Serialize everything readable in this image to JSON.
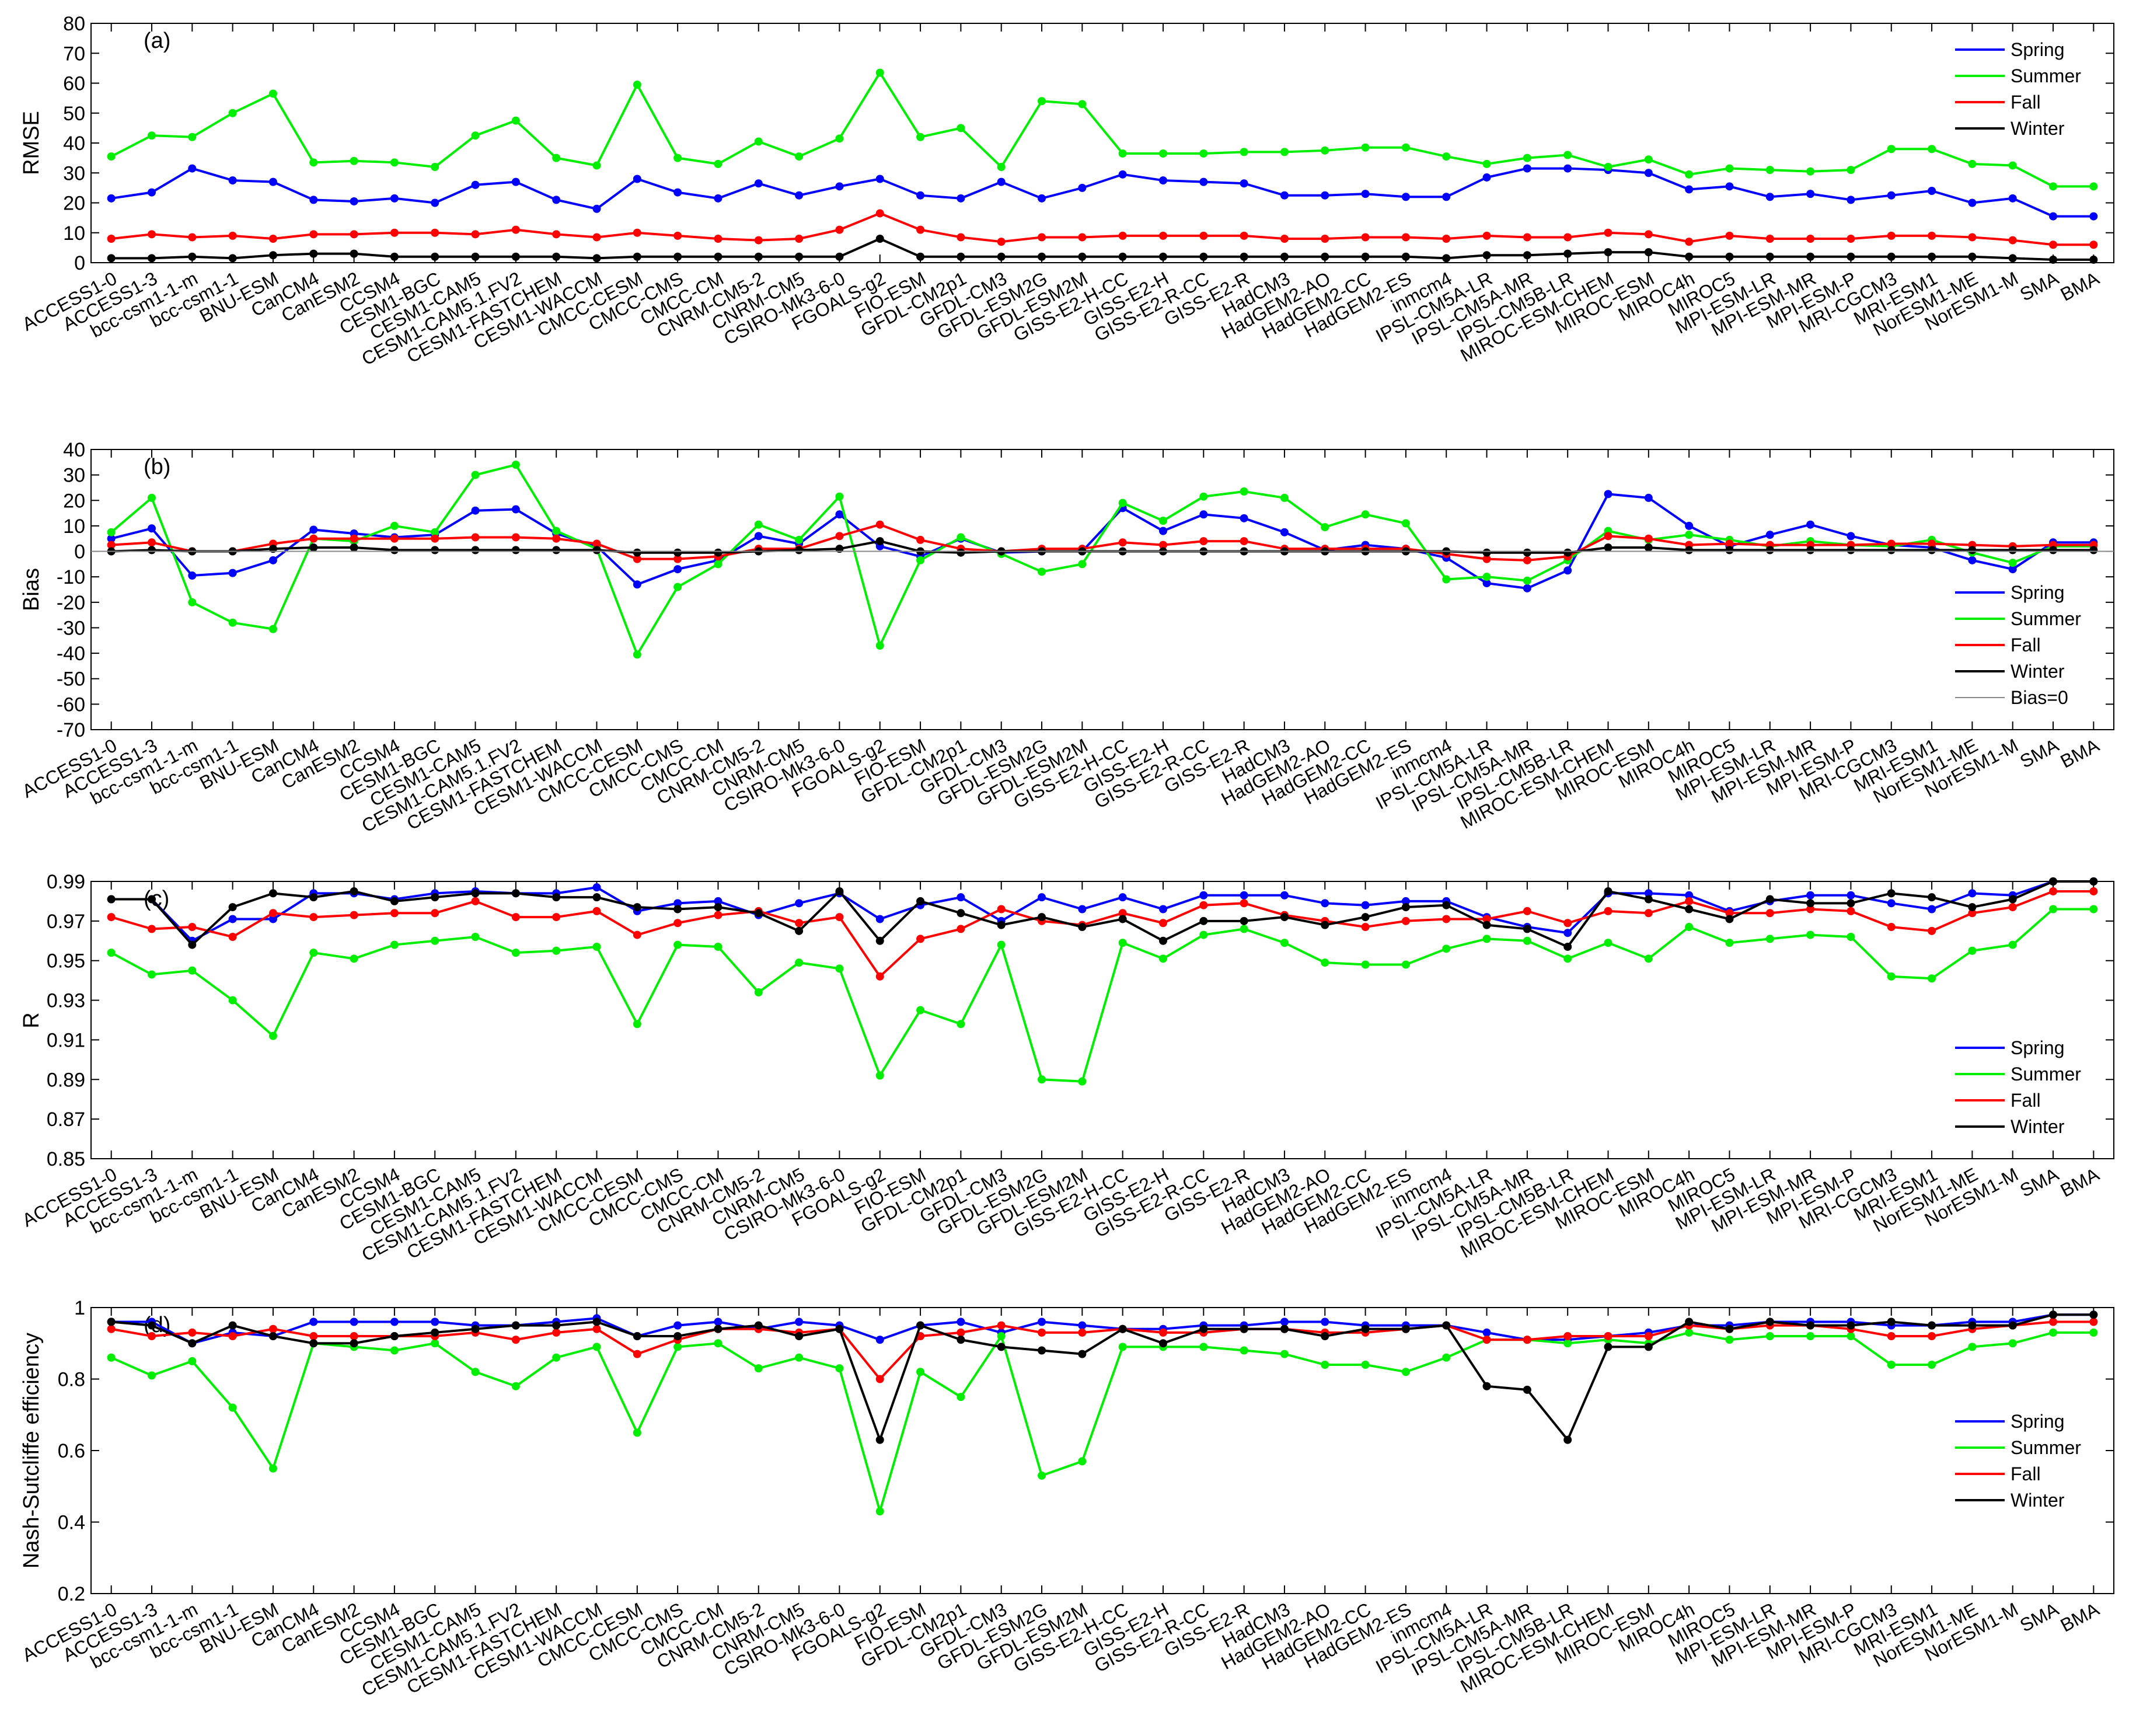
{
  "colors": {
    "spring": "#0000ff",
    "summer": "#00ee00",
    "fall": "#ff0000",
    "winter": "#000000",
    "zero": "#888888"
  },
  "models": [
    "ACCESS1-0",
    "ACCESS1-3",
    "bcc-csm1-1-m",
    "bcc-csm1-1",
    "BNU-ESM",
    "CanCM4",
    "CanESM2",
    "CCSM4",
    "CESM1-BGC",
    "CESM1-CAM5",
    "CESM1-CAM5.1.FV2",
    "CESM1-FASTCHEM",
    "CESM1-WACCM",
    "CMCC-CESM",
    "CMCC-CMS",
    "CMCC-CM",
    "CNRM-CM5-2",
    "CNRM-CM5",
    "CSIRO-Mk3-6-0",
    "FGOALS-g2",
    "FIO-ESM",
    "GFDL-CM2p1",
    "GFDL-CM3",
    "GFDL-ESM2G",
    "GFDL-ESM2M",
    "GISS-E2-H-CC",
    "GISS-E2-H",
    "GISS-E2-R-CC",
    "GISS-E2-R",
    "HadCM3",
    "HadGEM2-AO",
    "HadGEM2-CC",
    "HadGEM2-ES",
    "inmcm4",
    "IPSL-CM5A-LR",
    "IPSL-CM5A-MR",
    "IPSL-CM5B-LR",
    "MIROC-ESM-CHEM",
    "MIROC-ESM",
    "MIROC4h",
    "MIROC5",
    "MPI-ESM-LR",
    "MPI-ESM-MR",
    "MPI-ESM-P",
    "MRI-CGCM3",
    "MRI-ESM1",
    "NorESM1-ME",
    "NorESM1-M",
    "SMA",
    "BMA"
  ],
  "chart_data": [
    {
      "panel": "(a)",
      "type": "line",
      "ylabel": "RMSE",
      "ylim": [
        0,
        80
      ],
      "yticks": [
        "0",
        "10",
        "20",
        "30",
        "40",
        "50",
        "60",
        "70",
        "80"
      ],
      "legend": [
        "Spring",
        "Summer",
        "Fall",
        "Winter"
      ],
      "legend_position": "top-right",
      "series": [
        {
          "name": "Spring",
          "values": [
            21.5,
            23.5,
            31.5,
            27.5,
            27,
            21,
            20.5,
            21.5,
            20,
            26,
            27,
            21,
            18,
            28,
            23.5,
            21.5,
            26.5,
            22.5,
            25.5,
            28,
            22.5,
            21.5,
            27,
            21.5,
            25,
            29.5,
            27.5,
            27,
            26.5,
            22.5,
            22.5,
            23,
            22,
            22,
            28.5,
            31.5,
            31.5,
            31,
            30,
            24.5,
            25.5,
            22,
            23,
            21,
            22.5,
            24,
            20,
            21.5,
            15.5,
            15.5
          ]
        },
        {
          "name": "Summer",
          "values": [
            35.5,
            42.5,
            42,
            50,
            56.5,
            33.5,
            34,
            33.5,
            32,
            42.5,
            47.5,
            35,
            32.5,
            59.5,
            35,
            33,
            40.5,
            35.5,
            41.5,
            63.5,
            42,
            45,
            32,
            54,
            53,
            36.5,
            36.5,
            36.5,
            37,
            37,
            37.5,
            38.5,
            38.5,
            35.5,
            33,
            35,
            36,
            32,
            34.5,
            29.5,
            31.5,
            31,
            30.5,
            31,
            38,
            38,
            33,
            32.5,
            25.5,
            25.5
          ]
        },
        {
          "name": "Fall",
          "values": [
            8,
            9.5,
            8.5,
            9,
            8,
            9.5,
            9.5,
            10,
            10,
            9.5,
            11,
            9.5,
            8.5,
            10,
            9,
            8,
            7.5,
            8,
            11,
            16.5,
            11,
            8.5,
            7,
            8.5,
            8.5,
            9,
            9,
            9,
            9,
            8,
            8,
            8.5,
            8.5,
            8,
            9,
            8.5,
            8.5,
            10,
            9.5,
            7,
            9,
            8,
            8,
            8,
            9,
            9,
            8.5,
            7.5,
            6,
            6
          ]
        },
        {
          "name": "Winter",
          "values": [
            1.5,
            1.5,
            2,
            1.5,
            2.5,
            3,
            3,
            2,
            2,
            2,
            2,
            2,
            1.5,
            2,
            2,
            2,
            2,
            2,
            2,
            8,
            2,
            2,
            2,
            2,
            2,
            2,
            2,
            2,
            2,
            2,
            2,
            2,
            2,
            1.5,
            2.5,
            2.5,
            3,
            3.5,
            3.5,
            2,
            2,
            2,
            2,
            2,
            2,
            2,
            2,
            1.5,
            1,
            1
          ]
        }
      ]
    },
    {
      "panel": "(b)",
      "type": "line",
      "ylabel": "Bias",
      "ylim": [
        -70,
        40
      ],
      "yticks": [
        "-70",
        "-60",
        "-50",
        "-40",
        "-30",
        "-20",
        "-10",
        "0",
        "10",
        "20",
        "30",
        "40"
      ],
      "legend": [
        "Spring",
        "Summer",
        "Fall",
        "Winter",
        "Bias=0"
      ],
      "legend_position": "bottom-right",
      "series": [
        {
          "name": "Spring",
          "values": [
            5,
            9,
            -9.5,
            -8.5,
            -3.5,
            8.5,
            7,
            5.5,
            6.5,
            16,
            16.5,
            7,
            2,
            -13,
            -7,
            -3.5,
            6,
            3,
            14.5,
            2,
            -2,
            5,
            -0.5,
            0,
            0,
            17,
            8,
            14.5,
            13,
            7.5,
            0.5,
            2.5,
            1,
            -2.5,
            -12.5,
            -14.5,
            -7.5,
            22.5,
            21,
            10,
            2,
            6.5,
            10.5,
            6,
            2.5,
            1.5,
            -3.5,
            -7,
            3.5,
            3.5
          ]
        },
        {
          "name": "Summer",
          "values": [
            7.5,
            21,
            -20,
            -28,
            -30.5,
            5,
            4,
            10,
            7.5,
            30,
            34,
            8,
            1,
            -40.5,
            -14,
            -5,
            10.5,
            4.5,
            21.5,
            -37,
            -3.5,
            5.5,
            -1,
            -8,
            -5,
            19,
            12,
            21.5,
            23.5,
            21,
            9.5,
            14.5,
            11,
            -11,
            -10,
            -11.5,
            -3.5,
            8,
            4.5,
            6.5,
            4.5,
            2,
            4,
            2.5,
            2,
            4.5,
            -0.5,
            -4.5,
            2,
            2
          ]
        },
        {
          "name": "Fall",
          "values": [
            2.5,
            3.5,
            0,
            0,
            3,
            5,
            5,
            5,
            5,
            5.5,
            5.5,
            5,
            3,
            -3,
            -3,
            -2,
            1,
            1,
            6,
            10.5,
            4.5,
            1,
            0,
            1,
            1,
            3.5,
            2.5,
            4,
            4,
            1,
            1,
            1,
            1,
            -1,
            -3,
            -3.5,
            -2,
            6,
            5,
            2.5,
            3,
            2.5,
            2.5,
            2.5,
            3,
            3,
            2.5,
            2,
            2.5,
            2.5
          ]
        },
        {
          "name": "Winter",
          "values": [
            0,
            0.5,
            0,
            0,
            1,
            1.5,
            1.5,
            0.5,
            0.5,
            0.5,
            0.5,
            0.5,
            0.5,
            -0.5,
            -0.5,
            -0.5,
            0,
            0.5,
            1,
            4,
            0,
            -0.5,
            0,
            0,
            0,
            0,
            0,
            0,
            0,
            0,
            0,
            0,
            0,
            0,
            -0.5,
            -0.5,
            -0.5,
            1.5,
            1.5,
            0.5,
            0.5,
            0.5,
            0.5,
            0.5,
            0.5,
            0.5,
            0.5,
            0.5,
            0.5,
            0.5
          ]
        },
        {
          "name": "Bias=0",
          "values": [
            0,
            0
          ]
        }
      ]
    },
    {
      "panel": "(c)",
      "type": "line",
      "ylabel": "R",
      "ylim": [
        0.85,
        0.99
      ],
      "yticks": [
        "0.85",
        "0.87",
        "0.89",
        "0.91",
        "0.93",
        "0.95",
        "0.97",
        "0.99"
      ],
      "legend": [
        "Spring",
        "Summer",
        "Fall",
        "Winter"
      ],
      "legend_position": "bottom-right",
      "series": [
        {
          "name": "Spring",
          "values": [
            0.981,
            0.981,
            0.96,
            0.971,
            0.971,
            0.984,
            0.984,
            0.981,
            0.984,
            0.985,
            0.984,
            0.984,
            0.987,
            0.975,
            0.979,
            0.98,
            0.973,
            0.979,
            0.984,
            0.971,
            0.978,
            0.982,
            0.97,
            0.982,
            0.976,
            0.982,
            0.976,
            0.983,
            0.983,
            0.983,
            0.979,
            0.978,
            0.98,
            0.98,
            0.972,
            0.967,
            0.964,
            0.984,
            0.984,
            0.983,
            0.975,
            0.98,
            0.983,
            0.983,
            0.979,
            0.976,
            0.984,
            0.983,
            0.99,
            0.99
          ]
        },
        {
          "name": "Summer",
          "values": [
            0.954,
            0.943,
            0.945,
            0.93,
            0.912,
            0.954,
            0.951,
            0.958,
            0.96,
            0.962,
            0.954,
            0.955,
            0.957,
            0.918,
            0.958,
            0.957,
            0.934,
            0.949,
            0.946,
            0.892,
            0.925,
            0.918,
            0.958,
            0.89,
            0.889,
            0.959,
            0.951,
            0.963,
            0.966,
            0.959,
            0.949,
            0.948,
            0.948,
            0.956,
            0.961,
            0.96,
            0.951,
            0.959,
            0.951,
            0.967,
            0.959,
            0.961,
            0.963,
            0.962,
            0.942,
            0.941,
            0.955,
            0.958,
            0.976,
            0.976
          ]
        },
        {
          "name": "Fall",
          "values": [
            0.972,
            0.966,
            0.967,
            0.962,
            0.974,
            0.972,
            0.973,
            0.974,
            0.974,
            0.98,
            0.972,
            0.972,
            0.975,
            0.963,
            0.969,
            0.973,
            0.975,
            0.969,
            0.972,
            0.942,
            0.961,
            0.966,
            0.976,
            0.97,
            0.968,
            0.974,
            0.969,
            0.978,
            0.979,
            0.973,
            0.97,
            0.967,
            0.97,
            0.971,
            0.971,
            0.975,
            0.969,
            0.975,
            0.974,
            0.98,
            0.974,
            0.974,
            0.976,
            0.975,
            0.967,
            0.965,
            0.974,
            0.977,
            0.985,
            0.985
          ]
        },
        {
          "name": "Winter",
          "values": [
            0.981,
            0.981,
            0.958,
            0.977,
            0.984,
            0.982,
            0.985,
            0.98,
            0.982,
            0.984,
            0.984,
            0.982,
            0.982,
            0.977,
            0.976,
            0.977,
            0.974,
            0.965,
            0.985,
            0.96,
            0.98,
            0.974,
            0.968,
            0.972,
            0.967,
            0.971,
            0.96,
            0.97,
            0.97,
            0.972,
            0.968,
            0.972,
            0.977,
            0.978,
            0.968,
            0.966,
            0.957,
            0.985,
            0.981,
            0.976,
            0.971,
            0.981,
            0.979,
            0.979,
            0.984,
            0.982,
            0.977,
            0.981,
            0.99,
            0.99
          ]
        }
      ]
    },
    {
      "panel": "(d)",
      "type": "line",
      "ylabel": "Nash-Sutcliffe efficiency",
      "ylim": [
        0.2,
        1
      ],
      "yticks": [
        "0.2",
        "0.4",
        "0.6",
        "0.8",
        "1"
      ],
      "legend": [
        "Spring",
        "Summer",
        "Fall",
        "Winter"
      ],
      "legend_position": "right",
      "series": [
        {
          "name": "Spring",
          "values": [
            0.96,
            0.96,
            0.9,
            0.93,
            0.92,
            0.96,
            0.96,
            0.96,
            0.96,
            0.95,
            0.95,
            0.96,
            0.97,
            0.92,
            0.95,
            0.96,
            0.94,
            0.96,
            0.95,
            0.91,
            0.95,
            0.96,
            0.93,
            0.96,
            0.95,
            0.94,
            0.94,
            0.95,
            0.95,
            0.96,
            0.96,
            0.95,
            0.95,
            0.95,
            0.93,
            0.91,
            0.91,
            0.92,
            0.93,
            0.95,
            0.95,
            0.96,
            0.96,
            0.96,
            0.95,
            0.95,
            0.96,
            0.96,
            0.98,
            0.98
          ]
        },
        {
          "name": "Summer",
          "values": [
            0.86,
            0.81,
            0.85,
            0.72,
            0.55,
            0.9,
            0.89,
            0.88,
            0.9,
            0.82,
            0.78,
            0.86,
            0.89,
            0.65,
            0.89,
            0.9,
            0.83,
            0.86,
            0.83,
            0.43,
            0.82,
            0.75,
            0.92,
            0.53,
            0.57,
            0.89,
            0.89,
            0.89,
            0.88,
            0.87,
            0.84,
            0.84,
            0.82,
            0.86,
            0.91,
            0.91,
            0.9,
            0.91,
            0.9,
            0.93,
            0.91,
            0.92,
            0.92,
            0.92,
            0.84,
            0.84,
            0.89,
            0.9,
            0.93,
            0.93
          ]
        },
        {
          "name": "Fall",
          "values": [
            0.94,
            0.92,
            0.93,
            0.92,
            0.94,
            0.92,
            0.92,
            0.92,
            0.92,
            0.93,
            0.91,
            0.93,
            0.94,
            0.87,
            0.91,
            0.94,
            0.94,
            0.93,
            0.94,
            0.8,
            0.92,
            0.93,
            0.95,
            0.93,
            0.93,
            0.94,
            0.93,
            0.93,
            0.94,
            0.94,
            0.93,
            0.93,
            0.94,
            0.95,
            0.91,
            0.91,
            0.92,
            0.92,
            0.92,
            0.95,
            0.94,
            0.95,
            0.95,
            0.94,
            0.92,
            0.92,
            0.94,
            0.95,
            0.96,
            0.96
          ]
        },
        {
          "name": "Winter",
          "values": [
            0.96,
            0.95,
            0.9,
            0.95,
            0.92,
            0.9,
            0.9,
            0.92,
            0.93,
            0.94,
            0.95,
            0.95,
            0.96,
            0.92,
            0.92,
            0.94,
            0.95,
            0.92,
            0.94,
            0.63,
            0.95,
            0.91,
            0.89,
            0.88,
            0.87,
            0.94,
            0.9,
            0.94,
            0.94,
            0.94,
            0.92,
            0.94,
            0.94,
            0.95,
            0.78,
            0.77,
            0.63,
            0.89,
            0.89,
            0.96,
            0.94,
            0.96,
            0.95,
            0.95,
            0.96,
            0.95,
            0.95,
            0.95,
            0.98,
            0.98
          ]
        }
      ]
    }
  ]
}
